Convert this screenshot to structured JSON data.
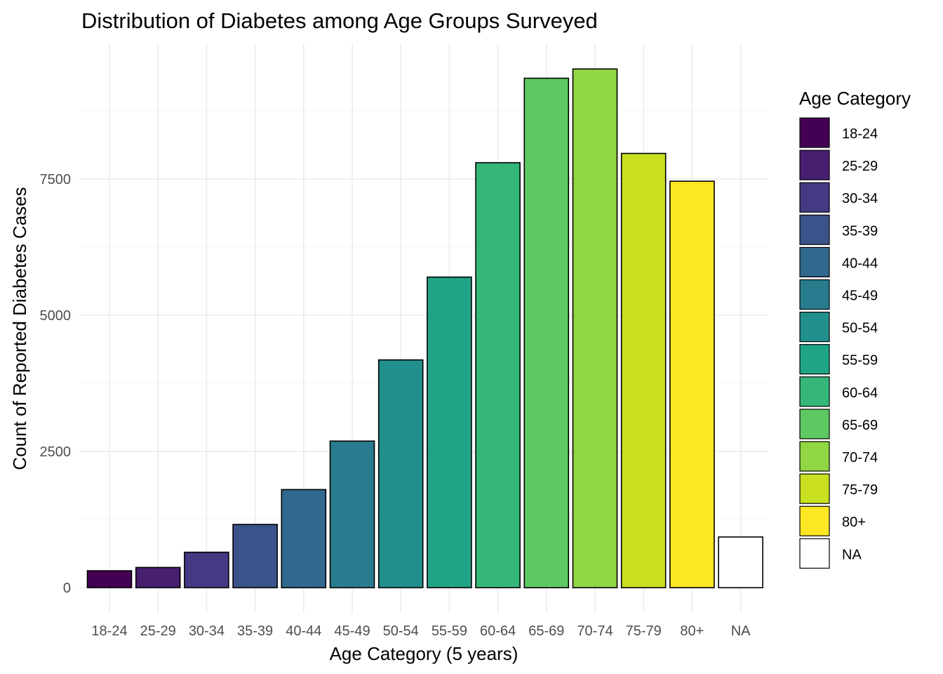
{
  "chart_data": {
    "type": "bar",
    "title": "Distribution of Diabetes among Age Groups Surveyed",
    "xlabel": "Age Category (5 years)",
    "ylabel": "Count of Reported Diabetes Cases",
    "categories": [
      "18-24",
      "25-29",
      "30-34",
      "35-39",
      "40-44",
      "45-49",
      "50-54",
      "55-59",
      "60-64",
      "65-69",
      "70-74",
      "75-79",
      "80+",
      "NA"
    ],
    "values": [
      310,
      370,
      650,
      1160,
      1800,
      2690,
      4180,
      5700,
      7800,
      9350,
      9520,
      7970,
      7460,
      930
    ],
    "colors": [
      "#440154",
      "#481f70",
      "#443983",
      "#3b528b",
      "#31688e",
      "#287c8e",
      "#21908c",
      "#20a486",
      "#35b779",
      "#5ec962",
      "#90d743",
      "#c8e020",
      "#fde725",
      "#ffffff"
    ],
    "ylim": [
      -400,
      10000
    ],
    "yticks": [
      0,
      2500,
      5000,
      7500
    ],
    "ytick_labels": [
      "0",
      "2500",
      "5000",
      "7500"
    ],
    "grid": true,
    "legend": {
      "title": "Age Category",
      "position": "right",
      "labels": [
        "18-24",
        "25-29",
        "30-34",
        "35-39",
        "40-44",
        "45-49",
        "50-54",
        "55-59",
        "60-64",
        "65-69",
        "70-74",
        "75-79",
        "80+",
        "NA"
      ]
    }
  }
}
